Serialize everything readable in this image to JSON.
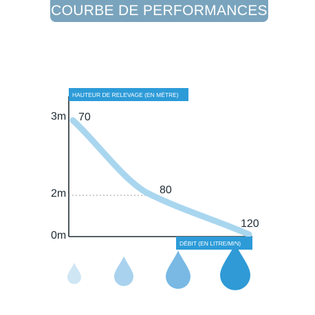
{
  "title": "COURBE DE PERFORMANCES",
  "colors": {
    "banner": "#7aa4bd",
    "axis_tag": "#2d9bd8",
    "curve": "#a9d6ef",
    "axis": "#1f2b33",
    "guide": "#9a9a9a",
    "drops": [
      "#cfe6f5",
      "#a9d2ee",
      "#79b9e4",
      "#2f9ad6"
    ]
  },
  "icons": [
    "water-drop-icon",
    "water-drop-icon",
    "water-drop-icon",
    "water-drop-icon"
  ],
  "chart_data": {
    "type": "line",
    "xlabel": "DÉBIT (EN LITRE/MIN)",
    "ylabel": "HAUTEUR DE RELEVAGE (EN MÈTRE)",
    "y_ticks": [
      "3m",
      "2m",
      "0m"
    ],
    "series": [
      {
        "x": [
          70,
          80,
          120
        ],
        "y": [
          3,
          2,
          0
        ],
        "labels": [
          "70",
          "80",
          "120"
        ]
      }
    ],
    "guide_line": {
      "y": 2,
      "style": "dotted"
    },
    "grid": false
  }
}
